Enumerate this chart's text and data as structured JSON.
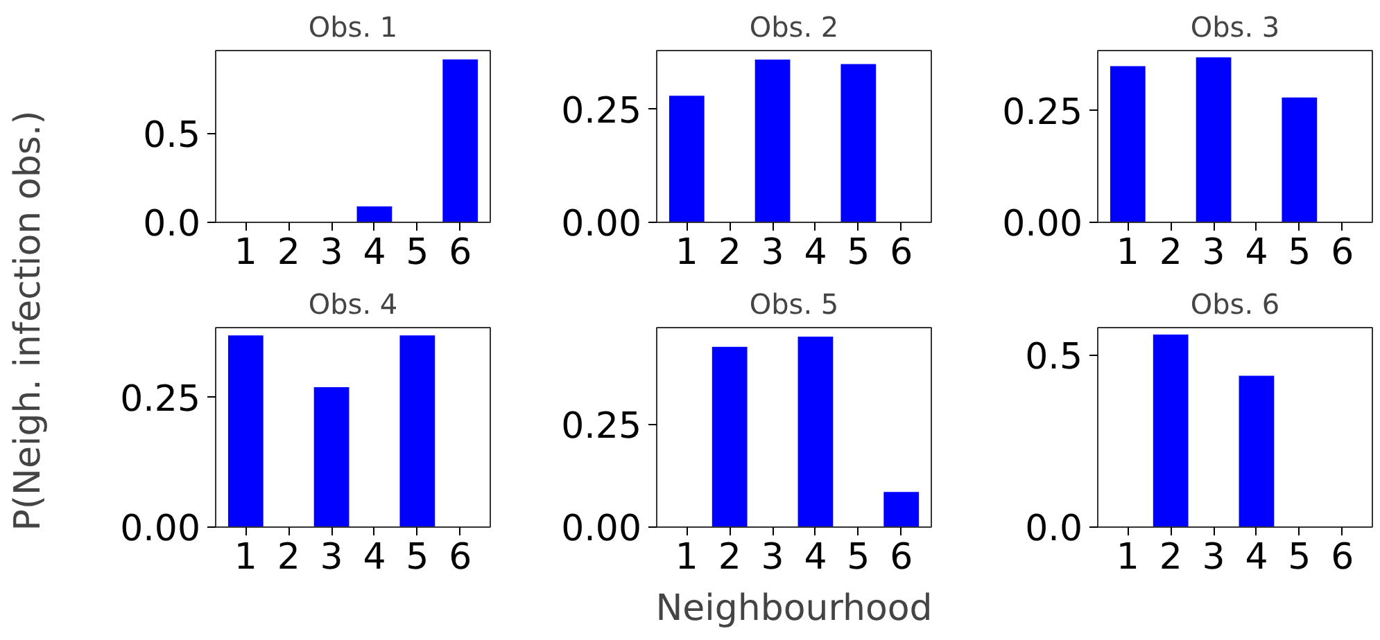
{
  "chart_data": [
    {
      "type": "bar",
      "title": "Obs. 1",
      "ylabel": "P(Neigh. infection obs.)",
      "categories": [
        "1",
        "2",
        "3",
        "4",
        "5",
        "6"
      ],
      "values": [
        0,
        0,
        0,
        0.09,
        0,
        0.92
      ],
      "color": "#0000ff",
      "ylim": [
        0,
        0.97
      ],
      "yticks": [
        {
          "value": 0,
          "label": "0.0"
        },
        {
          "value": 0.5,
          "label": "0.5"
        }
      ],
      "grid": false
    },
    {
      "type": "bar",
      "title": "Obs. 2",
      "categories": [
        "1",
        "2",
        "3",
        "4",
        "5",
        "6"
      ],
      "values": [
        0.28,
        0,
        0.36,
        0,
        0.35,
        0
      ],
      "color": "#0000ff",
      "ylim": [
        0,
        0.38
      ],
      "yticks": [
        {
          "value": 0,
          "label": "0.00"
        },
        {
          "value": 0.25,
          "label": "0.25"
        }
      ],
      "grid": false
    },
    {
      "type": "bar",
      "title": "Obs. 3",
      "categories": [
        "1",
        "2",
        "3",
        "4",
        "5",
        "6"
      ],
      "values": [
        0.35,
        0,
        0.37,
        0,
        0.28,
        0
      ],
      "color": "#0000ff",
      "ylim": [
        0,
        0.385
      ],
      "yticks": [
        {
          "value": 0,
          "label": "0.00"
        },
        {
          "value": 0.25,
          "label": "0.25"
        }
      ],
      "grid": false
    },
    {
      "type": "bar",
      "title": "Obs. 4",
      "categories": [
        "1",
        "2",
        "3",
        "4",
        "5",
        "6"
      ],
      "values": [
        0.37,
        0,
        0.27,
        0,
        0.37,
        0
      ],
      "color": "#0000ff",
      "ylim": [
        0,
        0.385
      ],
      "yticks": [
        {
          "value": 0,
          "label": "0.00"
        },
        {
          "value": 0.25,
          "label": "0.25"
        }
      ],
      "grid": false
    },
    {
      "type": "bar",
      "title": "Obs. 5",
      "xlabel": "Neighbourhood",
      "categories": [
        "1",
        "2",
        "3",
        "4",
        "5",
        "6"
      ],
      "values": [
        0,
        0.44,
        0,
        0.465,
        0,
        0.086
      ],
      "color": "#0000ff",
      "ylim": [
        0,
        0.487
      ],
      "yticks": [
        {
          "value": 0,
          "label": "0.00"
        },
        {
          "value": 0.25,
          "label": "0.25"
        }
      ],
      "grid": false
    },
    {
      "type": "bar",
      "title": "Obs. 6",
      "categories": [
        "1",
        "2",
        "3",
        "4",
        "5",
        "6"
      ],
      "values": [
        0,
        0.56,
        0,
        0.44,
        0,
        0
      ],
      "color": "#0000ff",
      "ylim": [
        0,
        0.58
      ],
      "yticks": [
        {
          "value": 0,
          "label": "0.0"
        },
        {
          "value": 0.5,
          "label": "0.5"
        }
      ],
      "grid": false
    }
  ]
}
